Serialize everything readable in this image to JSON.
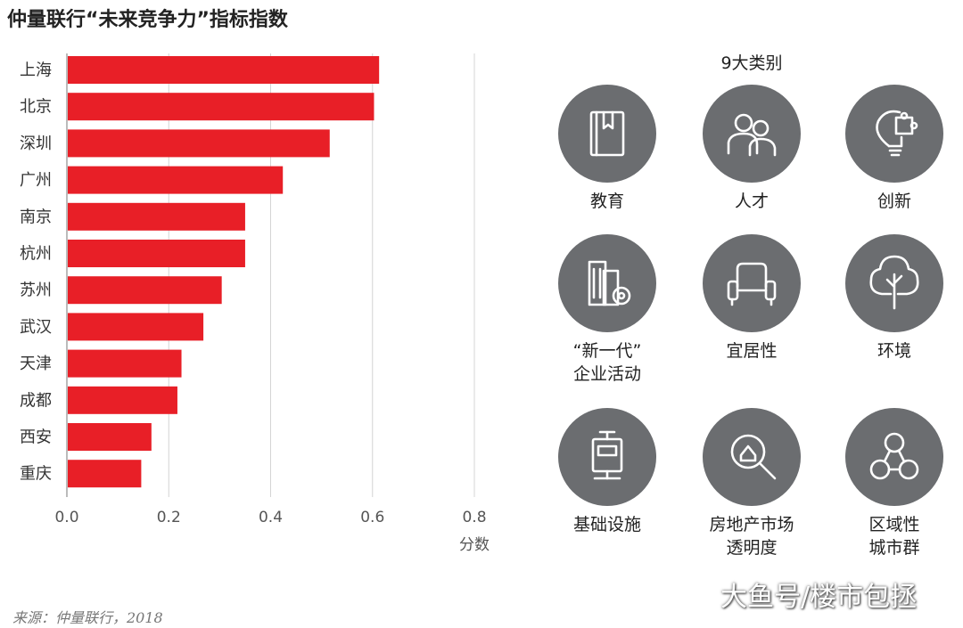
{
  "title": "仲量联行“未来竞争力”指标指数",
  "chart_data": {
    "type": "bar",
    "orientation": "horizontal",
    "title": "仲量联行“未来竞争力”指标指数",
    "categories": [
      "上海",
      "北京",
      "深圳",
      "广州",
      "南京",
      "杭州",
      "苏州",
      "武汉",
      "天津",
      "成都",
      "西安",
      "重庆"
    ],
    "values": [
      0.613,
      0.603,
      0.516,
      0.424,
      0.35,
      0.35,
      0.304,
      0.268,
      0.225,
      0.217,
      0.166,
      0.146
    ],
    "xlabel": "分数",
    "ylabel": "",
    "xlim": [
      0,
      0.8
    ],
    "xticks": [
      "0.0",
      "0.2",
      "0.4",
      "0.6",
      "0.8"
    ],
    "grid": true,
    "bar_color": "#e81f27"
  },
  "categories_panel": {
    "title": "9大类别",
    "icon_color": "#6b6d70",
    "items": [
      {
        "label": "教育",
        "icon": "book-icon"
      },
      {
        "label": "人才",
        "icon": "people-icon"
      },
      {
        "label": "创新",
        "icon": "lightbulb-puzzle-icon"
      },
      {
        "label": "“新一代”\n企业活动",
        "icon": "building-gear-icon"
      },
      {
        "label": "宜居性",
        "icon": "armchair-icon"
      },
      {
        "label": "环境",
        "icon": "tree-icon"
      },
      {
        "label": "基础设施",
        "icon": "tram-icon"
      },
      {
        "label": "房地产市场\n透明度",
        "icon": "house-magnifier-icon"
      },
      {
        "label": "区域性\n城市群",
        "icon": "network-icon"
      }
    ]
  },
  "source": "来源：仲量联行，2018",
  "watermark": "大鱼号/楼市包拯"
}
